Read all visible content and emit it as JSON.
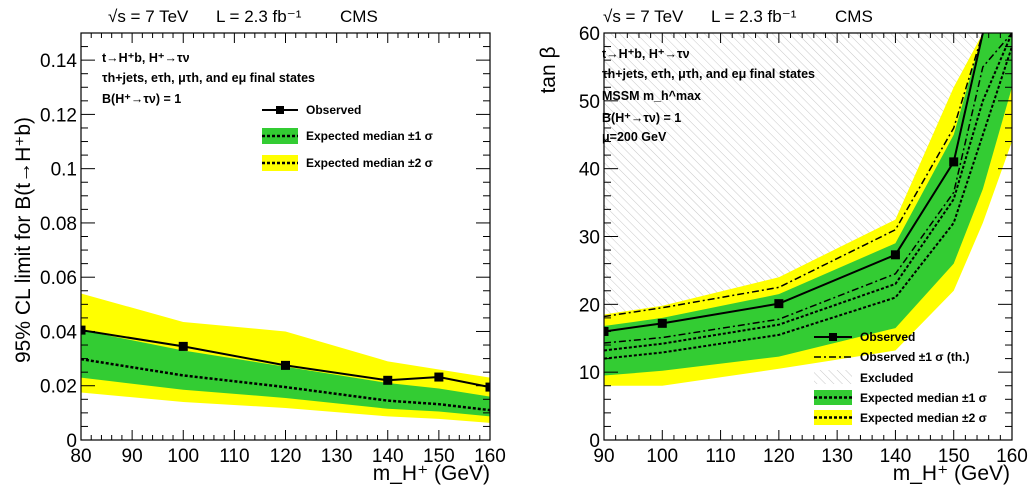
{
  "chart_data": [
    {
      "type": "line",
      "header": [
        "√s = 7 TeV",
        "L = 2.3 fb⁻¹",
        "CMS"
      ],
      "ylabel": "95% CL limit for B(t→H⁺b)",
      "xlabel": "m_H⁺ (GeV)",
      "xlim": [
        80,
        160
      ],
      "ylim": [
        0,
        0.15
      ],
      "xticks": [
        "80",
        "90",
        "100",
        "110",
        "120",
        "130",
        "140",
        "150",
        "160"
      ],
      "yticks": [
        "0",
        "0.02",
        "0.04",
        "0.06",
        "0.08",
        "0.1",
        "0.12",
        "0.14"
      ],
      "annotations": [
        "t→H⁺b, H⁺→τν",
        "τh+jets, eτh, μτh, and eμ final states",
        "B(H⁺→τν) = 1"
      ],
      "legend": [
        "Observed",
        "Expected median ±1 σ",
        "Expected median ±2 σ"
      ],
      "x": [
        80,
        100,
        120,
        140,
        150,
        160
      ],
      "series": [
        {
          "name": "Observed",
          "values": [
            0.0405,
            0.0345,
            0.0275,
            0.022,
            0.0232,
            0.0195
          ]
        },
        {
          "name": "Expected median",
          "values": [
            0.0298,
            0.0238,
            0.0195,
            0.0145,
            0.0132,
            0.011
          ]
        },
        {
          "name": "Expected ±1σ low",
          "values": [
            0.023,
            0.0185,
            0.0155,
            0.0115,
            0.0105,
            0.0087
          ]
        },
        {
          "name": "Expected ±1σ high",
          "values": [
            0.0405,
            0.033,
            0.027,
            0.021,
            0.019,
            0.016
          ]
        },
        {
          "name": "Expected ±2σ low",
          "values": [
            0.0175,
            0.014,
            0.0118,
            0.0087,
            0.0078,
            0.0063
          ]
        },
        {
          "name": "Expected ±2σ high",
          "values": [
            0.054,
            0.0435,
            0.04,
            0.029,
            0.026,
            0.023
          ]
        }
      ]
    },
    {
      "type": "line",
      "header": [
        "√s = 7 TeV",
        "L = 2.3 fb⁻¹",
        "CMS"
      ],
      "ylabel": "tan β",
      "xlabel": "m_H⁺ (GeV)",
      "xlim": [
        90,
        160
      ],
      "ylim": [
        0,
        60
      ],
      "xticks": [
        "90",
        "100",
        "110",
        "120",
        "130",
        "140",
        "150",
        "160"
      ],
      "yticks": [
        "0",
        "10",
        "20",
        "30",
        "40",
        "50",
        "60"
      ],
      "annotations": [
        "t→H⁺b, H⁺→τν",
        "τh+jets, eτh, μτh, and eμ final states",
        "MSSM m_h^max",
        "B(H⁺→τν) = 1",
        "μ=200 GeV"
      ],
      "legend": [
        "Observed",
        "Observed ±1 σ (th.)",
        "Excluded",
        "Expected median ±1 σ",
        "Expected median ±2 σ"
      ],
      "x": [
        90,
        100,
        120,
        140,
        150,
        155,
        160
      ],
      "series": [
        {
          "name": "Observed",
          "values": [
            16,
            17.2,
            20.1,
            27.3,
            41,
            60,
            null
          ]
        },
        {
          "name": "Observed ±1σ (th.) upper",
          "values": [
            18.2,
            19.5,
            22.5,
            31,
            46,
            60,
            null
          ]
        },
        {
          "name": "Observed ±1σ (th.) lower",
          "values": [
            14.3,
            15.1,
            17.8,
            24.5,
            36.5,
            55,
            60
          ]
        },
        {
          "name": "Expected median upper",
          "values": [
            13.2,
            14.2,
            17.0,
            23.0,
            35.5,
            50,
            60
          ]
        },
        {
          "name": "Expected median lower",
          "values": [
            12.0,
            12.9,
            15.5,
            21.0,
            32.0,
            45,
            58
          ]
        },
        {
          "name": "Expected ±1σ low",
          "values": [
            9.5,
            10.2,
            12.3,
            16.5,
            26,
            37,
            52
          ]
        },
        {
          "name": "Expected ±1σ high",
          "values": [
            16.8,
            18.0,
            21.5,
            29.0,
            45,
            60,
            60
          ]
        },
        {
          "name": "Expected ±2σ low",
          "values": [
            8.0,
            8.0,
            10.5,
            13.2,
            22,
            32,
            44
          ]
        },
        {
          "name": "Expected ±2σ high",
          "values": [
            18.5,
            19.8,
            24,
            32.5,
            52,
            60,
            60
          ]
        }
      ]
    }
  ]
}
